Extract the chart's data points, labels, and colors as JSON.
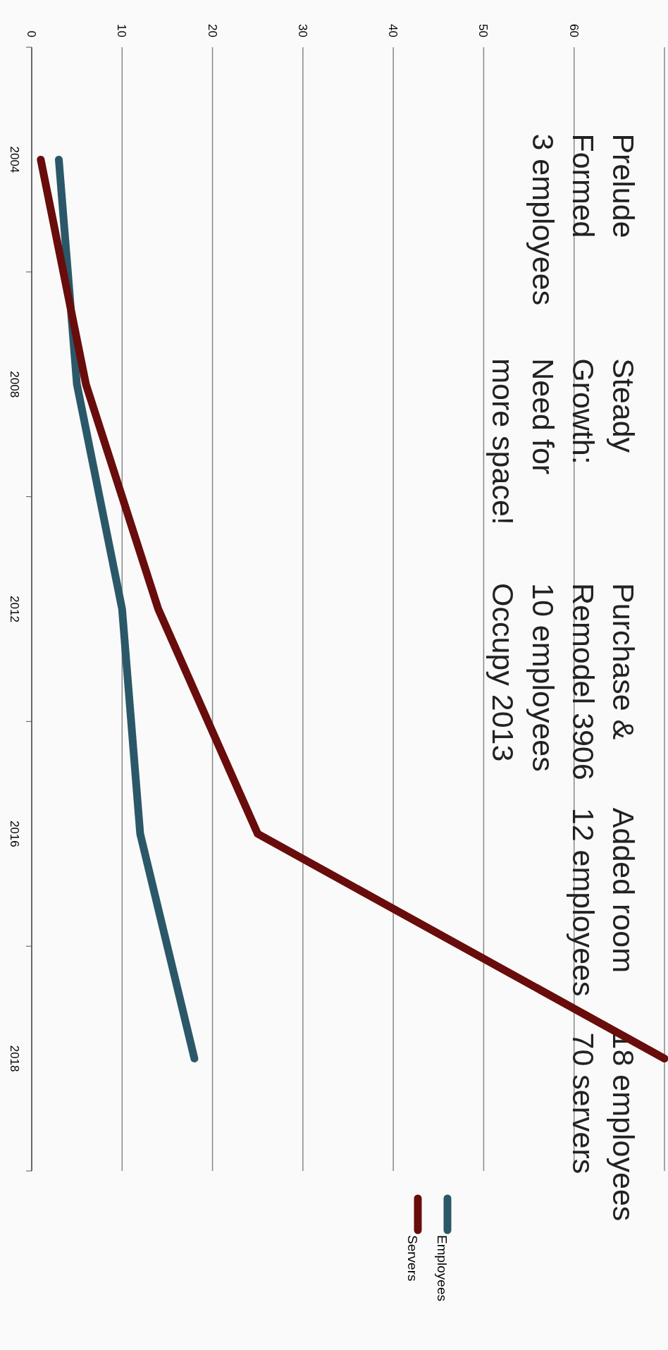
{
  "chart_data": {
    "type": "line",
    "categories": [
      "2004",
      "2008",
      "2012",
      "2016",
      "2018"
    ],
    "series": [
      {
        "name": "Employees",
        "color": "#2a5868",
        "values": [
          3,
          5,
          10,
          12,
          18
        ]
      },
      {
        "name": "Servers",
        "color": "#690c0c",
        "values": [
          1,
          6,
          14,
          25,
          70
        ]
      }
    ],
    "orientation": "horizontal",
    "xlim": [
      0,
      70
    ],
    "xticks": [
      0,
      10,
      20,
      30,
      40,
      50,
      60
    ],
    "grid": "x",
    "legend": "right",
    "marker": "none",
    "line_style": "solid",
    "annotations": [
      "Prelude\nFormed\n3 employees",
      "Steady\nGrowth:\nNeed for\nmore space!",
      "Purchase &\nRemodel 3906\n10 employees\nOccupy 2013",
      "Added room\n12 employees",
      "18 employees\n70 servers"
    ]
  }
}
